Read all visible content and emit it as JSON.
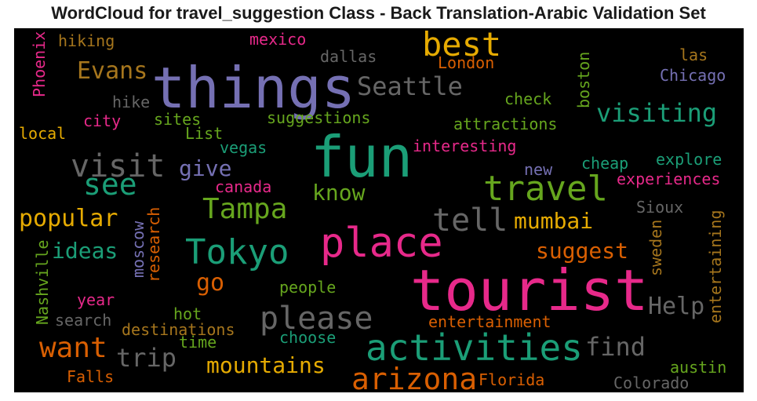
{
  "chart_data": {
    "type": "wordcloud",
    "title": "WordCloud for travel_suggestion Class - Back Translation-Arabic Validation Set",
    "words": [
      {
        "text": "things",
        "color": "#7570b3"
      },
      {
        "text": "fun",
        "color": "#1b9e77"
      },
      {
        "text": "tourist",
        "color": "#e7298a"
      },
      {
        "text": "place",
        "color": "#e7298a"
      },
      {
        "text": "Tokyo",
        "color": "#1b9e77"
      },
      {
        "text": "travel",
        "color": "#66a61e"
      },
      {
        "text": "activities",
        "color": "#1b9e77"
      },
      {
        "text": "best",
        "color": "#e6ab02"
      },
      {
        "text": "arizona",
        "color": "#d95f02"
      },
      {
        "text": "visit",
        "color": "#666666"
      },
      {
        "text": "please",
        "color": "#666666"
      },
      {
        "text": "see",
        "color": "#1b9e77"
      },
      {
        "text": "Tampa",
        "color": "#66a61e"
      },
      {
        "text": "want",
        "color": "#d95f02"
      },
      {
        "text": "tell",
        "color": "#666666"
      },
      {
        "text": "visiting",
        "color": "#1b9e77"
      },
      {
        "text": "mountains",
        "color": "#e6ab02"
      },
      {
        "text": "trip",
        "color": "#666666"
      },
      {
        "text": "find",
        "color": "#666666"
      },
      {
        "text": "Seattle",
        "color": "#666666"
      },
      {
        "text": "Evans",
        "color": "#a6761d"
      },
      {
        "text": "popular",
        "color": "#e6ab02"
      },
      {
        "text": "ideas",
        "color": "#1b9e77"
      },
      {
        "text": "give",
        "color": "#7570b3"
      },
      {
        "text": "know",
        "color": "#66a61e"
      },
      {
        "text": "mumbai",
        "color": "#e6ab02"
      },
      {
        "text": "suggest",
        "color": "#d95f02"
      },
      {
        "text": "go",
        "color": "#d95f02"
      },
      {
        "text": "Help",
        "color": "#666666"
      },
      {
        "text": "hiking",
        "color": "#a6761d"
      },
      {
        "text": "mexico",
        "color": "#e7298a"
      },
      {
        "text": "dallas",
        "color": "#666666"
      },
      {
        "text": "London",
        "color": "#d95f02"
      },
      {
        "text": "las",
        "color": "#a6761d"
      },
      {
        "text": "Chicago",
        "color": "#7570b3"
      },
      {
        "text": "Phoenix",
        "color": "#e7298a"
      },
      {
        "text": "hike",
        "color": "#666666"
      },
      {
        "text": "check",
        "color": "#66a61e"
      },
      {
        "text": "boston",
        "color": "#66a61e"
      },
      {
        "text": "city",
        "color": "#e7298a"
      },
      {
        "text": "sites",
        "color": "#66a61e"
      },
      {
        "text": "suggestions",
        "color": "#66a61e"
      },
      {
        "text": "attractions",
        "color": "#66a61e"
      },
      {
        "text": "List",
        "color": "#66a61e"
      },
      {
        "text": "local",
        "color": "#e6ab02"
      },
      {
        "text": "vegas",
        "color": "#1b9e77"
      },
      {
        "text": "interesting",
        "color": "#e7298a"
      },
      {
        "text": "cheap",
        "color": "#1b9e77"
      },
      {
        "text": "explore",
        "color": "#1b9e77"
      },
      {
        "text": "new",
        "color": "#7570b3"
      },
      {
        "text": "experiences",
        "color": "#e7298a"
      },
      {
        "text": "canada",
        "color": "#e7298a"
      },
      {
        "text": "Sioux",
        "color": "#666666"
      },
      {
        "text": "research",
        "color": "#d95f02"
      },
      {
        "text": "moscow",
        "color": "#7570b3"
      },
      {
        "text": "sweden",
        "color": "#a6761d"
      },
      {
        "text": "entertaining",
        "color": "#a6761d"
      },
      {
        "text": "Nashville",
        "color": "#66a61e"
      },
      {
        "text": "people",
        "color": "#66a61e"
      },
      {
        "text": "year",
        "color": "#e7298a"
      },
      {
        "text": "hot",
        "color": "#66a61e"
      },
      {
        "text": "search",
        "color": "#666666"
      },
      {
        "text": "entertainment",
        "color": "#d95f02"
      },
      {
        "text": "destinations",
        "color": "#a6761d"
      },
      {
        "text": "choose",
        "color": "#1b9e77"
      },
      {
        "text": "time",
        "color": "#66a61e"
      },
      {
        "text": "Falls",
        "color": "#d95f02"
      },
      {
        "text": "Florida",
        "color": "#d95f02"
      },
      {
        "text": "austin",
        "color": "#66a61e"
      },
      {
        "text": "Colorado",
        "color": "#666666"
      }
    ]
  }
}
